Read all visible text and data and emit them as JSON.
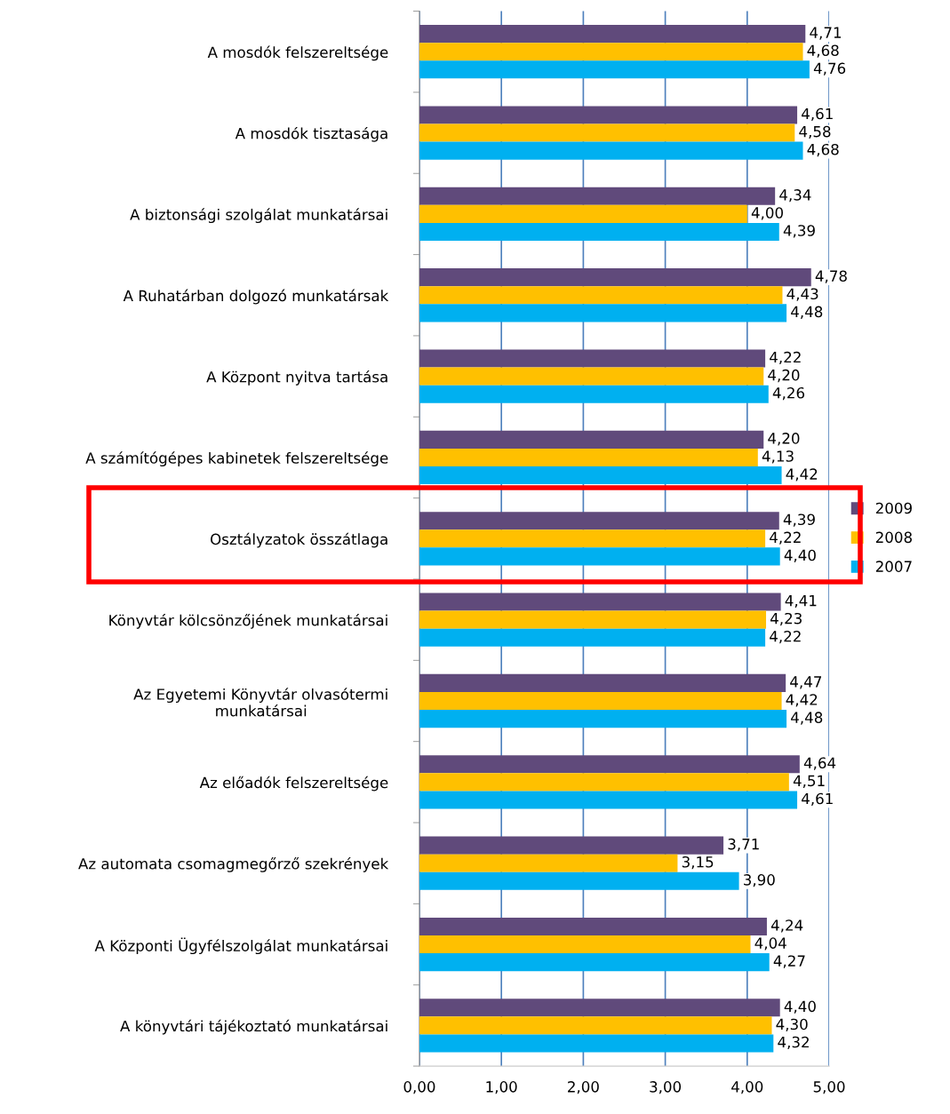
{
  "chart_data": {
    "type": "bar",
    "orientation": "horizontal",
    "categories": [
      "A mosdók felszereltsége",
      "A mosdók tisztasága",
      "A biztonsági szolgálat munkatársai",
      "A Ruhatárban dolgozó munkatársak",
      "A Központ nyitva tartása",
      "A számítógépes kabinetek felszereltsége",
      "Osztályzatok összátlaga",
      "Könyvtár kölcsönzőjének munkatársai",
      "Az Egyetemi Könyvtár olvasótermi\nmunkatársai",
      "Az előadók felszereltsége",
      "Az automata csomagmegőrző szekrények",
      "A Központi Ügyfélszolgálat munkatársai",
      "A könyvtári tájékoztató munkatársai"
    ],
    "series": [
      {
        "name": "2009",
        "color": "#604a7b",
        "values": [
          4.71,
          4.61,
          4.34,
          4.78,
          4.22,
          4.2,
          4.39,
          4.41,
          4.47,
          4.64,
          3.71,
          4.24,
          4.4
        ],
        "value_labels": [
          "4,71",
          "4,61",
          "4,34",
          "4,78",
          "4,22",
          "4,20",
          "4,39",
          "4,41",
          "4,47",
          "4,64",
          "3,71",
          "4,24",
          "4,40"
        ]
      },
      {
        "name": "2008",
        "color": "#ffc000",
        "values": [
          4.68,
          4.58,
          4.0,
          4.43,
          4.2,
          4.13,
          4.22,
          4.23,
          4.42,
          4.51,
          3.15,
          4.04,
          4.3
        ],
        "value_labels": [
          "4,68",
          "4,58",
          "4,00",
          "4,43",
          "4,20",
          "4,13",
          "4,22",
          "4,23",
          "4,42",
          "4,51",
          "3,15",
          "4,04",
          "4,30"
        ]
      },
      {
        "name": "2007",
        "color": "#00b0f0",
        "values": [
          4.76,
          4.68,
          4.39,
          4.48,
          4.26,
          4.42,
          4.4,
          4.22,
          4.48,
          4.61,
          3.9,
          4.27,
          4.32
        ],
        "value_labels": [
          "4,76",
          "4,68",
          "4,39",
          "4,48",
          "4,26",
          "4,42",
          "4,40",
          "4,22",
          "4,48",
          "4,61",
          "3,90",
          "4,27",
          "4,32"
        ]
      }
    ],
    "xlim": [
      0,
      5
    ],
    "xticks": [
      {
        "value": 0,
        "label": "0,00"
      },
      {
        "value": 1,
        "label": "1,00"
      },
      {
        "value": 2,
        "label": "2,00"
      },
      {
        "value": 3,
        "label": "3,00"
      },
      {
        "value": 4,
        "label": "4,00"
      },
      {
        "value": 5,
        "label": "5,00"
      }
    ],
    "grid": "x",
    "legend": "right"
  }
}
